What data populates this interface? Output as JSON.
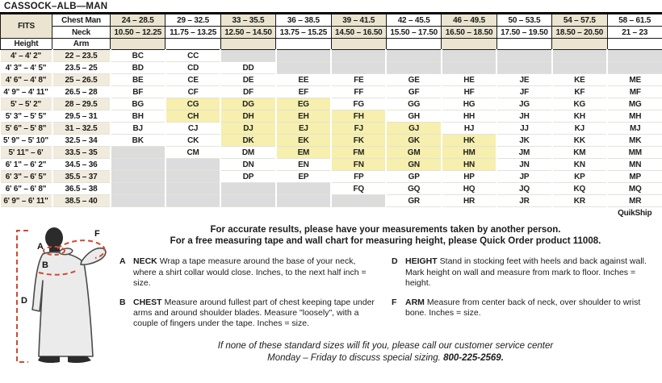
{
  "title": "CASSOCK–ALB—MAN",
  "colors": {
    "header_beige": "#EAE4D0",
    "row_beige": "#F0EBDC",
    "quikship_yellow": "#F6EFAD",
    "unavailable_gray": "#DCDCDC",
    "figure_dash_red": "#D14A30"
  },
  "table": {
    "fits_label": "FITS",
    "chest_label": "Chest Man",
    "neck_label": "Neck",
    "height_label": "Height",
    "arm_label": "Arm",
    "chest_ranges": [
      "24 – 28.5",
      "29 – 32.5",
      "33 – 35.5",
      "36 – 38.5",
      "39 – 41.5",
      "42 – 45.5",
      "46 – 49.5",
      "50 – 53.5",
      "54 – 57.5",
      "58 – 61.5"
    ],
    "neck_ranges": [
      "10.50 – 12.25",
      "11.75 – 13.25",
      "12.50 – 14.50",
      "13.75 – 15.25",
      "14.50 – 16.50",
      "15.50 – 17.50",
      "16.50 – 18.50",
      "17.50 – 19.50",
      "18.50 – 20.50",
      "21 – 23"
    ],
    "rows": [
      {
        "height": "4' – 4' 2\"",
        "arm": "22 – 23.5",
        "sizes": [
          "BC",
          "CC",
          "",
          "",
          "",
          "",
          "",
          "",
          "",
          ""
        ]
      },
      {
        "height": "4' 3\" – 4' 5\"",
        "arm": "23.5 – 25",
        "sizes": [
          "BD",
          "CD",
          "DD",
          "",
          "",
          "",
          "",
          "",
          "",
          ""
        ]
      },
      {
        "height": "4' 6\" – 4' 8\"",
        "arm": "25 – 26.5",
        "sizes": [
          "BE",
          "CE",
          "DE",
          "EE",
          "FE",
          "GE",
          "HE",
          "JE",
          "KE",
          "ME"
        ]
      },
      {
        "height": "4' 9\" – 4' 11\"",
        "arm": "26.5 – 28",
        "sizes": [
          "BF",
          "CF",
          "DF",
          "EF",
          "FF",
          "GF",
          "HF",
          "JF",
          "KF",
          "MF"
        ]
      },
      {
        "height": "5' – 5' 2\"",
        "arm": "28 – 29.5",
        "sizes": [
          "BG",
          "CG",
          "DG",
          "EG",
          "FG",
          "GG",
          "HG",
          "JG",
          "KG",
          "MG"
        ]
      },
      {
        "height": "5' 3\" – 5' 5\"",
        "arm": "29.5 – 31",
        "sizes": [
          "BH",
          "CH",
          "DH",
          "EH",
          "FH",
          "GH",
          "HH",
          "JH",
          "KH",
          "MH"
        ]
      },
      {
        "height": "5' 6\" – 5' 8\"",
        "arm": "31 – 32.5",
        "sizes": [
          "BJ",
          "CJ",
          "DJ",
          "EJ",
          "FJ",
          "GJ",
          "HJ",
          "JJ",
          "KJ",
          "MJ"
        ]
      },
      {
        "height": "5' 9\" – 5' 10\"",
        "arm": "32.5 – 34",
        "sizes": [
          "BK",
          "CK",
          "DK",
          "EK",
          "FK",
          "GK",
          "HK",
          "JK",
          "KK",
          "MK"
        ]
      },
      {
        "height": "5' 11\" – 6'",
        "arm": "33.5 – 35",
        "sizes": [
          "",
          "CM",
          "DM",
          "EM",
          "FM",
          "GM",
          "HM",
          "JM",
          "KM",
          "MM"
        ]
      },
      {
        "height": "6' 1\" – 6' 2\"",
        "arm": "34.5 – 36",
        "sizes": [
          "",
          "",
          "DN",
          "EN",
          "FN",
          "GN",
          "HN",
          "JN",
          "KN",
          "MN"
        ]
      },
      {
        "height": "6' 3\" – 6' 5\"",
        "arm": "35.5 – 37",
        "sizes": [
          "",
          "",
          "DP",
          "EP",
          "FP",
          "GP",
          "HP",
          "JP",
          "KP",
          "MP"
        ]
      },
      {
        "height": "6' 6\" – 6' 8\"",
        "arm": "36.5 – 38",
        "sizes": [
          "",
          "",
          "",
          "",
          "FQ",
          "GQ",
          "HQ",
          "JQ",
          "KQ",
          "MQ"
        ]
      },
      {
        "height": "6' 9\" – 6' 11\"",
        "arm": "38.5 – 40",
        "sizes": [
          "",
          "",
          "",
          "",
          "",
          "GR",
          "HR",
          "JR",
          "KR",
          "MR"
        ]
      }
    ],
    "quikship_sizes": [
      "CG",
      "DG",
      "EG",
      "CH",
      "DH",
      "EH",
      "FH",
      "DJ",
      "EJ",
      "FJ",
      "GJ",
      "DK",
      "EK",
      "FK",
      "GK",
      "HK",
      "EM",
      "FM",
      "GM",
      "HM",
      "FN",
      "GN",
      "HN"
    ],
    "quikship_label": "QuikShip"
  },
  "notes": {
    "line1": "For accurate results, please have your measurements taken by another person.",
    "line2": "For a free measuring tape and wall chart for measuring height, please Quick Order product 11008."
  },
  "definitions": [
    {
      "letter": "A",
      "term": "NECK",
      "text": "Wrap a tape measure around the base of your neck, where a shirt collar would close. Inches, to the next half inch = size."
    },
    {
      "letter": "B",
      "term": "CHEST",
      "text": "Measure around fullest part of chest keeping tape under arms and around shoulder blades. Measure \"loosely\", with a couple of fingers under the tape. Inches = size."
    },
    {
      "letter": "D",
      "term": "HEIGHT",
      "text": "Stand in stocking feet with heels and back against wall. Mark height on wall and measure from mark to floor. Inches = height."
    },
    {
      "letter": "F",
      "term": "ARM",
      "text": "Measure from center back of neck, over shoulder to wrist bone. Inches = size."
    }
  ],
  "figure": {
    "label_a": "A",
    "label_b": "B",
    "label_d": "D",
    "label_f": "F"
  },
  "footer": {
    "line1": "If none of these standard sizes will fit you, please call our customer service center",
    "line2_prefix": "Monday – Friday to discuss special sizing. ",
    "phone": "800-225-2569."
  }
}
